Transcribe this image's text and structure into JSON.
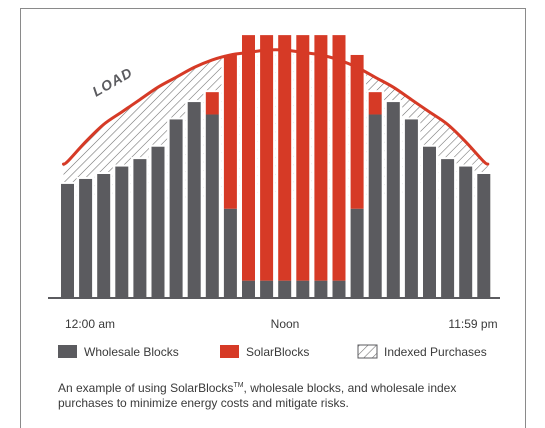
{
  "chart_data": {
    "type": "bar",
    "title": "",
    "xlabel": "",
    "ylabel": "",
    "ylim": [
      0,
      100
    ],
    "x_tick_labels": [
      "12:00 am",
      "Noon",
      "11:59 pm"
    ],
    "categories": [
      "1",
      "2",
      "3",
      "4",
      "5",
      "6",
      "7",
      "8",
      "9",
      "10",
      "11",
      "12",
      "13",
      "14",
      "15",
      "16",
      "17",
      "18",
      "19",
      "20",
      "21",
      "22",
      "23",
      "24"
    ],
    "series": [
      {
        "name": "Wholesale Blocks",
        "color": "#5b5b5f",
        "values": [
          46,
          48,
          50,
          53,
          56,
          61,
          72,
          79,
          74,
          36,
          7,
          7,
          7,
          7,
          7,
          7,
          36,
          74,
          79,
          72,
          61,
          56,
          53,
          50
        ]
      },
      {
        "name": "SolarBlocks",
        "color": "#d63a26",
        "values": [
          0,
          0,
          0,
          0,
          0,
          0,
          0,
          0,
          9,
          62,
          99,
          99,
          99,
          99,
          99,
          99,
          62,
          9,
          0,
          0,
          0,
          0,
          0,
          0
        ]
      }
    ],
    "load": {
      "label": "LOAD",
      "color": "#d63a26",
      "values": [
        55,
        63,
        70,
        75,
        80,
        85,
        89,
        93,
        96,
        98,
        99,
        100,
        100,
        99,
        98,
        96,
        93,
        89,
        85,
        80,
        75,
        70,
        63,
        55
      ]
    },
    "indexed_purchases": {
      "name": "Indexed Purchases",
      "pattern": "diagonal-hatch"
    },
    "legend": {
      "position": "bottom",
      "items": [
        {
          "label": "Wholesale Blocks",
          "color": "#5b5b5f",
          "swatch": "solid"
        },
        {
          "label": "SolarBlocks",
          "color": "#d63a26",
          "swatch": "solid"
        },
        {
          "label": "Indexed Purchases",
          "color": "#5b5b5f",
          "swatch": "hatch"
        }
      ]
    },
    "grid": false
  },
  "caption": {
    "pre": "An example of using SolarBlocks",
    "tm": "TM",
    "post": ", wholesale blocks, and wholesale index purchases to minimize energy costs and mitigate risks."
  }
}
